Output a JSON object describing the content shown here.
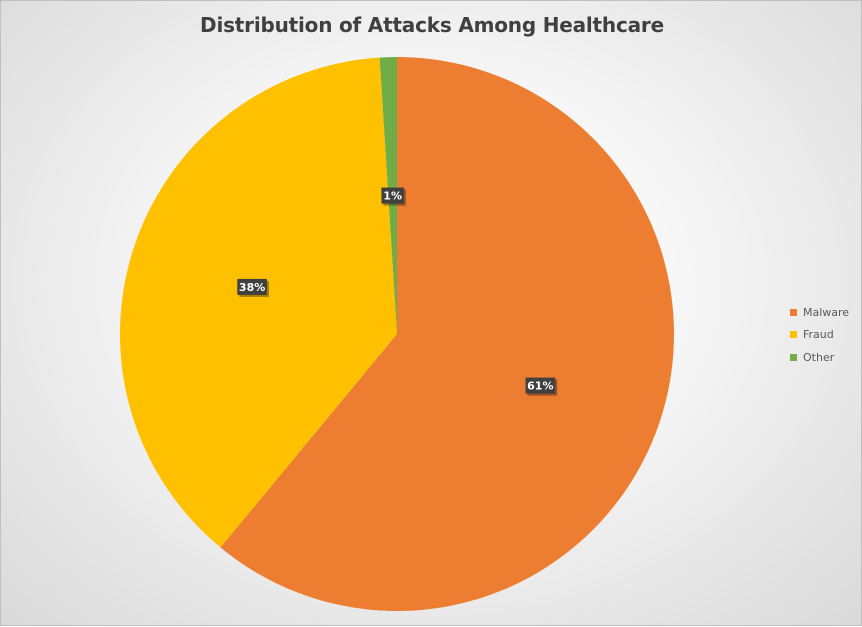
{
  "chart_data": {
    "type": "pie",
    "title": "Distribution of Attacks Among Healthcare",
    "categories": [
      "Malware",
      "Fraud",
      "Other"
    ],
    "values": [
      61,
      38,
      1
    ],
    "data_labels": [
      "61%",
      "38%",
      "1%"
    ],
    "colors": [
      "#ED7D31",
      "#FFC000",
      "#70AD47"
    ],
    "legend_position": "right"
  }
}
